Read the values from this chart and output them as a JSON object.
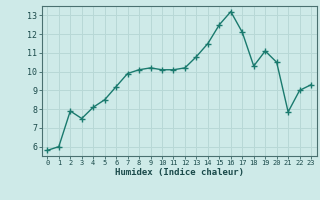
{
  "x": [
    0,
    1,
    2,
    3,
    4,
    5,
    6,
    7,
    8,
    9,
    10,
    11,
    12,
    13,
    14,
    15,
    16,
    17,
    18,
    19,
    20,
    21,
    22,
    23
  ],
  "y": [
    5.8,
    6.0,
    7.9,
    7.5,
    8.1,
    8.5,
    9.2,
    9.9,
    10.1,
    10.2,
    10.1,
    10.1,
    10.2,
    10.8,
    11.5,
    12.5,
    13.2,
    12.1,
    10.3,
    11.1,
    10.5,
    7.85,
    9.0,
    9.3
  ],
  "xlabel": "Humidex (Indice chaleur)",
  "xlim": [
    -0.5,
    23.5
  ],
  "ylim": [
    5.5,
    13.5
  ],
  "yticks": [
    6,
    7,
    8,
    9,
    10,
    11,
    12,
    13
  ],
  "xticks": [
    0,
    1,
    2,
    3,
    4,
    5,
    6,
    7,
    8,
    9,
    10,
    11,
    12,
    13,
    14,
    15,
    16,
    17,
    18,
    19,
    20,
    21,
    22,
    23
  ],
  "line_color": "#1a7a6e",
  "marker": "+",
  "bg_color": "#ceeae8",
  "grid_color": "#b8d8d6",
  "spine_color": "#4a7070",
  "tick_label_color": "#1a4a4a",
  "xlabel_color": "#1a4a4a",
  "marker_size": 4,
  "line_width": 1.0
}
